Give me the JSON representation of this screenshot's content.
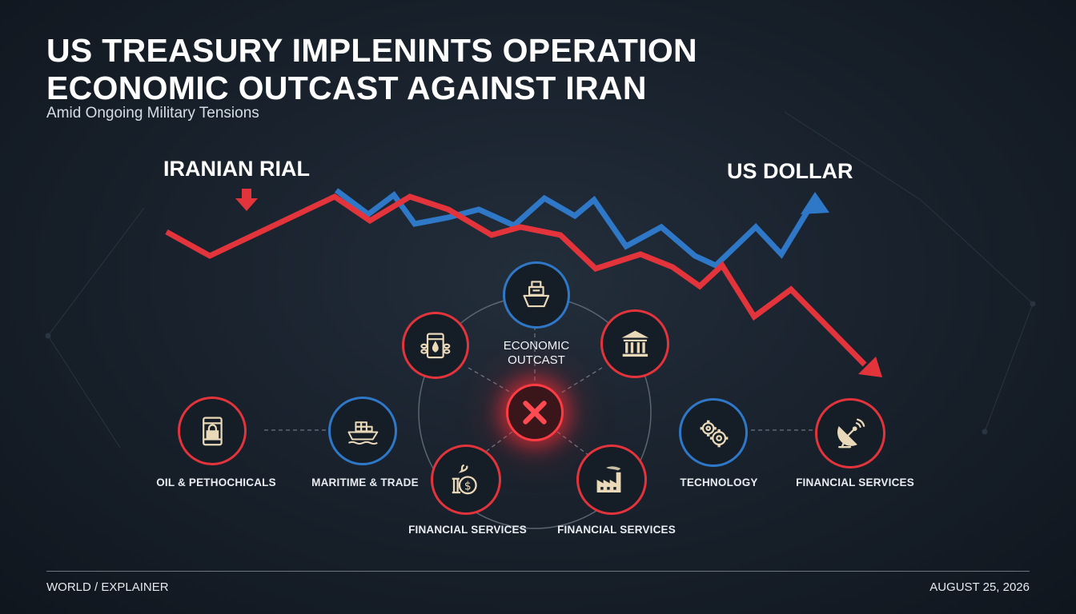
{
  "headline": {
    "line1": "US TREASURY IMPLENINTS OPERATION",
    "line2": "ECONOMIC OUTCAST AGAINST IRAN",
    "subtitle": "Amid Ongoing Military Tensions"
  },
  "chart_data": {
    "type": "line",
    "series": [
      {
        "name": "IRANIAN RIAL",
        "color": "#e3343c",
        "trend": "down"
      },
      {
        "name": "US DOLLAR",
        "color": "#2e78c7",
        "trend": "up"
      }
    ]
  },
  "hub": {
    "label_line1": "ECONOMIC",
    "label_line2": "OUTCAST",
    "center_icon": "x-icon"
  },
  "sectors": [
    {
      "label": "OIL & PETHOCHICALS",
      "icon": "oil-barrel-lock-icon",
      "color": "#e3343c"
    },
    {
      "label": "MARITIME & TRADE",
      "icon": "cargo-ship-icon",
      "color": "#2e78c7"
    },
    {
      "label": "FINANCIAL SERVICES",
      "icon": "money-bag-icon",
      "color": "#e3343c"
    },
    {
      "label": "FINANCIAL SERVICES",
      "icon": "factory-icon",
      "color": "#e3343c"
    },
    {
      "label": "TECHNOLOGY",
      "icon": "gears-icon",
      "color": "#2e78c7"
    },
    {
      "label": "FINANCIAL SERVICES",
      "icon": "satellite-dish-icon",
      "color": "#e3343c"
    }
  ],
  "ring_icons": [
    {
      "icon": "ship-icon",
      "color": "#2e78c7"
    },
    {
      "icon": "chained-oil-barrel-icon",
      "color": "#e3343c"
    },
    {
      "icon": "bank-icon",
      "color": "#e3343c"
    }
  ],
  "footer": {
    "section": "WORLD / EXPLAINER",
    "date": "AUGUST 25, 2026"
  },
  "colors": {
    "red": "#e3343c",
    "blue": "#2e78c7",
    "background": "#17202a"
  }
}
